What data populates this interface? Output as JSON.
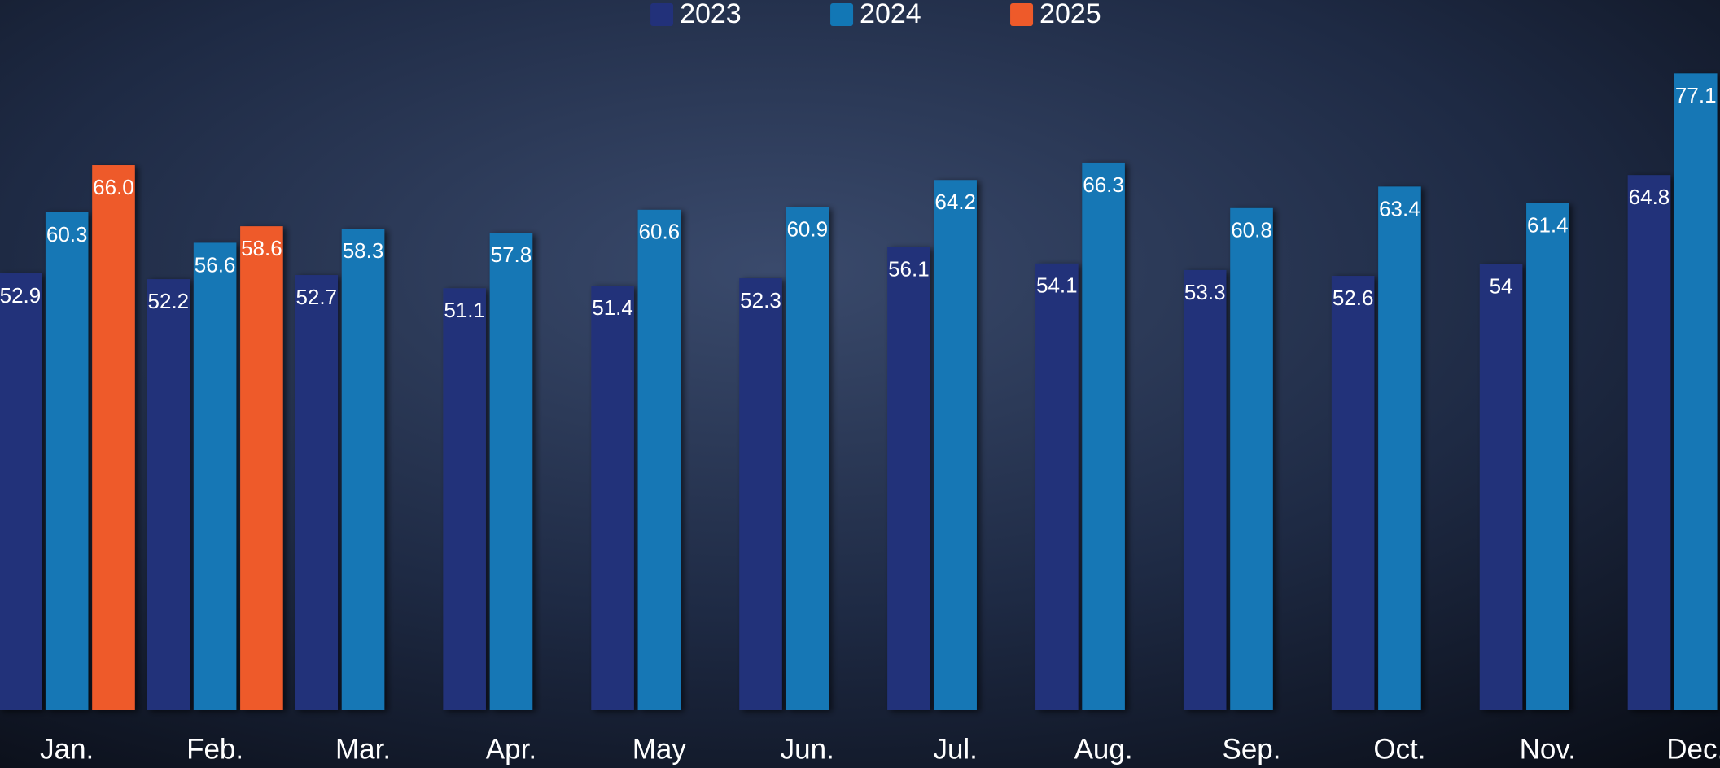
{
  "chart_data": {
    "type": "bar",
    "categories": [
      "Jan.",
      "Feb.",
      "Mar.",
      "Apr.",
      "May",
      "Jun.",
      "Jul.",
      "Aug.",
      "Sep.",
      "Oct.",
      "Nov.",
      "Dec."
    ],
    "series": [
      {
        "name": "2023",
        "color": "#22317a",
        "values": [
          52.9,
          52.2,
          52.7,
          51.1,
          51.4,
          52.3,
          56.1,
          54.1,
          53.3,
          52.6,
          54,
          64.8
        ]
      },
      {
        "name": "2024",
        "color": "#1277b5",
        "values": [
          60.3,
          56.6,
          58.3,
          57.8,
          60.6,
          60.9,
          64.2,
          66.3,
          60.8,
          63.4,
          61.4,
          77.1
        ]
      },
      {
        "name": "2025",
        "color": "#ee5a2a",
        "values": [
          66,
          58.6,
          null,
          null,
          null,
          null,
          null,
          null,
          null,
          null,
          null,
          null
        ],
        "value_labels": [
          "66.0",
          "58.6",
          null,
          null,
          null,
          null,
          null,
          null,
          null,
          null,
          null,
          null
        ]
      }
    ],
    "ylim": [
      0,
      86
    ],
    "legend": "top"
  }
}
